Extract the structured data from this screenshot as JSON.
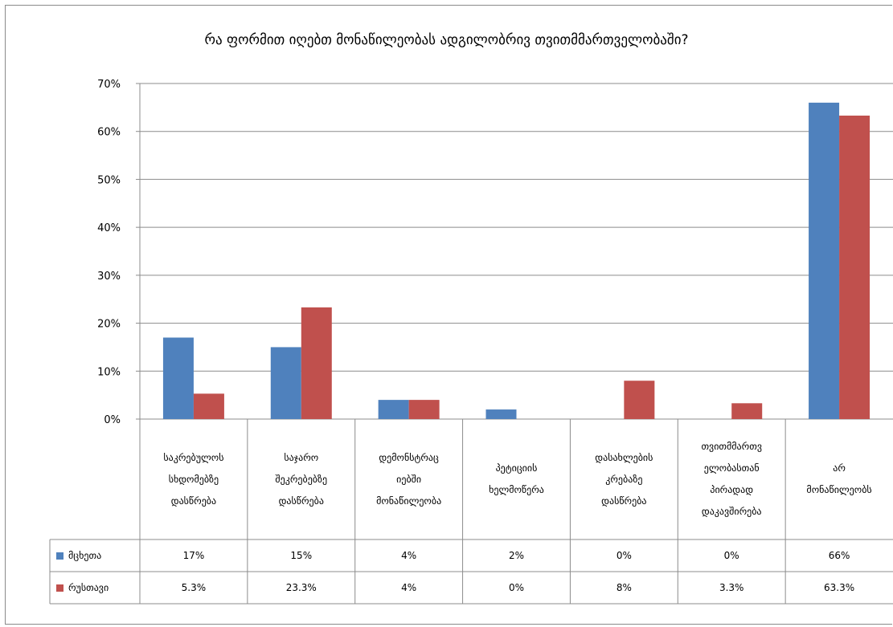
{
  "chart_data": {
    "type": "bar",
    "title": "რა ფორმით იღებთ მონაწილეობას ადგილობრივ თვითმმართველობაში?",
    "categories": [
      "საკრებულოს სხდომებზე დასწრება",
      "საჯარო შეკრებებზე დასწრება",
      "დემონსტრაციებში მონაწილეობა",
      "პეტიციის ხელმოწერა",
      "დასახლების კრებაზე დასწრება",
      "თვითმმართველობასთან პირადად დაკავშირება",
      "არ მონაწილეობს"
    ],
    "category_lines": [
      [
        "საკრებულოს",
        "სხდომებზე",
        "დასწრება"
      ],
      [
        "საჯარო",
        "შეკრებებზე",
        "დასწრება"
      ],
      [
        "დემონსტრაც",
        "იებში",
        "მონაწილეობა"
      ],
      [
        "პეტიციის",
        "ხელმოწერა"
      ],
      [
        "დასახლების",
        "კრებაზე",
        "დასწრება"
      ],
      [
        "თვითმმართვ",
        "ელობასთან",
        "პირადად",
        "დაკავშირება"
      ],
      [
        "არ",
        "მონაწილეობს"
      ]
    ],
    "series": [
      {
        "name": "მცხეთა",
        "color": "#4F81BD",
        "values": [
          17,
          15,
          4,
          2,
          0,
          0,
          66
        ],
        "labels": [
          "17%",
          "15%",
          "4%",
          "2%",
          "0%",
          "0%",
          "66%"
        ]
      },
      {
        "name": "რუსთავი",
        "color": "#C0504D",
        "values": [
          5.3,
          23.3,
          4,
          0,
          8,
          3.3,
          63.3
        ],
        "labels": [
          "5.3%",
          "23.3%",
          "4%",
          "0%",
          "8%",
          "3.3%",
          "63.3%"
        ]
      }
    ],
    "y_ticks": [
      "0%",
      "10%",
      "20%",
      "30%",
      "40%",
      "50%",
      "60%",
      "70%"
    ],
    "ylim": [
      0,
      70
    ],
    "grid": true,
    "legend": "data table"
  }
}
